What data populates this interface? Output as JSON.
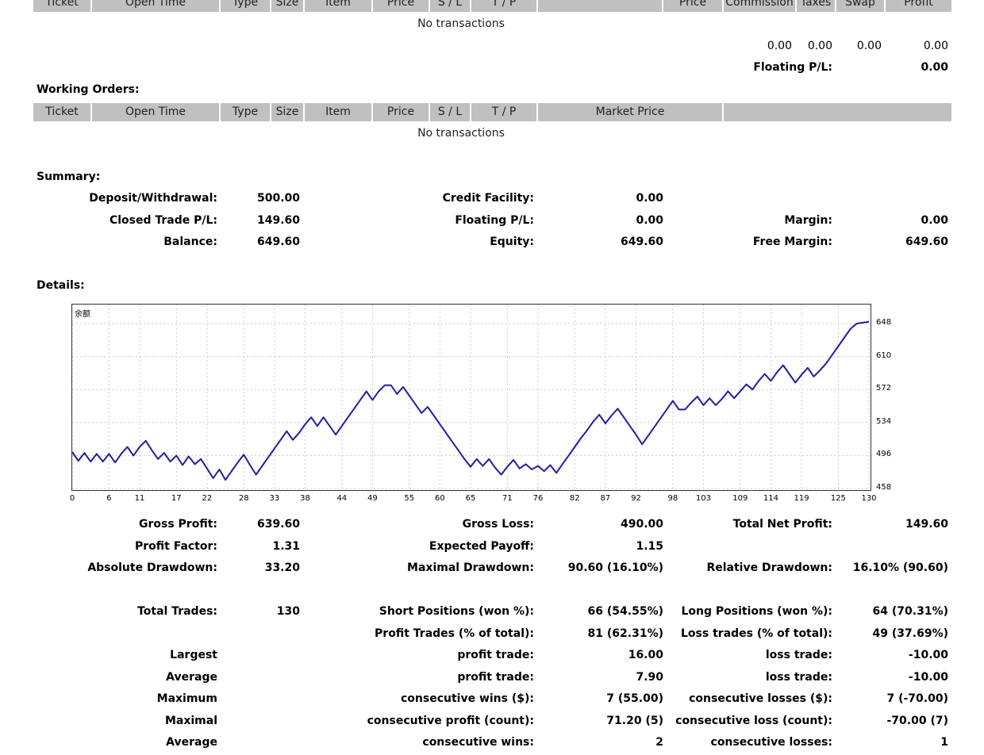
{
  "table_headers": {
    "top": [
      "Ticket",
      "Open Time",
      "Type",
      "Size",
      "Item",
      "Price",
      "S / L",
      "T / P",
      "",
      "Price",
      "Commission",
      "Taxes",
      "Swap",
      "Profit"
    ],
    "working": [
      "Ticket",
      "Open Time",
      "Type",
      "Size",
      "Item",
      "Price",
      "S / L",
      "T / P",
      "Market Price",
      ""
    ]
  },
  "no_transactions": "No transactions",
  "totals": {
    "commission": "0.00",
    "taxes": "0.00",
    "swap": "0.00",
    "profit": "0.00"
  },
  "floating": {
    "label": "Floating P/L:",
    "value": "0.00"
  },
  "working_orders_title": "Working Orders:",
  "summary": {
    "title": "Summary:",
    "deposit_label": "Deposit/Withdrawal:",
    "deposit_value": "500.00",
    "credit_label": "Credit Facility:",
    "credit_value": "0.00",
    "closed_label": "Closed Trade P/L:",
    "closed_value": "149.60",
    "floating_label": "Floating P/L:",
    "floating_value": "0.00",
    "margin_label": "Margin:",
    "margin_value": "0.00",
    "balance_label": "Balance:",
    "balance_value": "649.60",
    "equity_label": "Equity:",
    "equity_value": "649.60",
    "free_margin_label": "Free Margin:",
    "free_margin_value": "649.60"
  },
  "details_title": "Details:",
  "chart_data": {
    "type": "line",
    "title": "余额",
    "x_ticks": [
      "0",
      "6",
      "11",
      "17",
      "22",
      "28",
      "33",
      "38",
      "44",
      "49",
      "55",
      "60",
      "65",
      "71",
      "76",
      "82",
      "87",
      "92",
      "98",
      "103",
      "109",
      "114",
      "119",
      "125",
      "130"
    ],
    "y_ticks": [
      "648",
      "610",
      "572",
      "534",
      "496",
      "458"
    ],
    "ylim": [
      458,
      648
    ],
    "xlim": [
      0,
      130
    ],
    "grid": true,
    "series": [
      {
        "color": "#1f1fa0",
        "x": [
          0,
          1,
          2,
          3,
          4,
          5,
          6,
          7,
          8,
          9,
          10,
          11,
          12,
          13,
          14,
          15,
          16,
          17,
          18,
          19,
          20,
          21,
          22,
          23,
          24,
          25,
          26,
          27,
          28,
          29,
          30,
          31,
          32,
          33,
          34,
          35,
          36,
          37,
          38,
          39,
          40,
          41,
          42,
          43,
          44,
          45,
          46,
          47,
          48,
          49,
          50,
          51,
          52,
          53,
          54,
          55,
          56,
          57,
          58,
          59,
          60,
          61,
          62,
          63,
          64,
          65,
          66,
          67,
          68,
          69,
          70,
          71,
          72,
          73,
          74,
          75,
          76,
          77,
          78,
          79,
          80,
          81,
          82,
          83,
          84,
          85,
          86,
          87,
          88,
          89,
          90,
          91,
          92,
          93,
          94,
          95,
          96,
          97,
          98,
          99,
          100,
          101,
          102,
          103,
          104,
          105,
          106,
          107,
          108,
          109,
          110,
          111,
          112,
          113,
          114,
          115,
          116,
          117,
          118,
          119,
          120,
          121,
          122,
          123,
          124,
          125,
          126,
          127,
          128,
          129,
          130
        ],
        "y": [
          500,
          490,
          499,
          489,
          498,
          489,
          498,
          488,
          498,
          506,
          496,
          506,
          513,
          502,
          492,
          499,
          489,
          496,
          485,
          495,
          486,
          492,
          481,
          470,
          480,
          468,
          478,
          488,
          497,
          485,
          474,
          484,
          494,
          504,
          514,
          524,
          514,
          522,
          532,
          540,
          530,
          540,
          530,
          520,
          530,
          540,
          550,
          560,
          570,
          560,
          570,
          577,
          577,
          567,
          575,
          565,
          555,
          545,
          552,
          542,
          532,
          522,
          512,
          502,
          492,
          483,
          492,
          484,
          492,
          482,
          474,
          483,
          491,
          481,
          486,
          480,
          484,
          478,
          485,
          476,
          486,
          496,
          506,
          516,
          525,
          535,
          543,
          533,
          542,
          550,
          540,
          530,
          520,
          509,
          519,
          529,
          539,
          549,
          559,
          549,
          549,
          557,
          564,
          554,
          562,
          554,
          561,
          570,
          562,
          570,
          578,
          572,
          582,
          590,
          582,
          592,
          600,
          590,
          580,
          589,
          597,
          587,
          594,
          602,
          612,
          622,
          632,
          642,
          648,
          649,
          650
        ]
      }
    ]
  },
  "stats": {
    "gross_profit_label": "Gross Profit:",
    "gross_profit_value": "639.60",
    "gross_loss_label": "Gross Loss:",
    "gross_loss_value": "490.00",
    "total_net_profit_label": "Total Net Profit:",
    "total_net_profit_value": "149.60",
    "profit_factor_label": "Profit Factor:",
    "profit_factor_value": "1.31",
    "expected_payoff_label": "Expected Payoff:",
    "expected_payoff_value": "1.15",
    "absolute_drawdown_label": "Absolute Drawdown:",
    "absolute_drawdown_value": "33.20",
    "maximal_drawdown_label": "Maximal Drawdown:",
    "maximal_drawdown_value": "90.60 (16.10%)",
    "relative_drawdown_label": "Relative Drawdown:",
    "relative_drawdown_value": "16.10% (90.60)",
    "total_trades_label": "Total Trades:",
    "total_trades_value": "130",
    "short_label": "Short Positions (won %):",
    "short_value": "66 (54.55%)",
    "long_label": "Long Positions (won %):",
    "long_value": "64 (70.31%)",
    "profit_trades_label": "Profit Trades (% of total):",
    "profit_trades_value": "81 (62.31%)",
    "loss_trades_label": "Loss trades (% of total):",
    "loss_trades_value": "49 (37.69%)",
    "largest_label": "Largest",
    "largest_profit_label": "profit trade:",
    "largest_profit_value": "16.00",
    "largest_loss_label": "loss trade:",
    "largest_loss_value": "-10.00",
    "average_label": "Average",
    "average_profit_label": "profit trade:",
    "average_profit_value": "7.90",
    "average_loss_label": "loss trade:",
    "average_loss_value": "-10.00",
    "maximum_label": "Maximum",
    "max_wins_label": "consecutive wins ($):",
    "max_wins_value": "7 (55.00)",
    "max_losses_label": "consecutive losses ($):",
    "max_losses_value": "7 (-70.00)",
    "maximal_label": "Maximal",
    "maximal_profit_label": "consecutive profit (count):",
    "maximal_profit_value": "71.20 (5)",
    "maximal_loss_label": "consecutive loss (count):",
    "maximal_loss_value": "-70.00 (7)",
    "average2_label": "Average",
    "avg_wins_label": "consecutive wins:",
    "avg_wins_value": "2",
    "avg_losses_label": "consecutive losses:",
    "avg_losses_value": "1"
  }
}
